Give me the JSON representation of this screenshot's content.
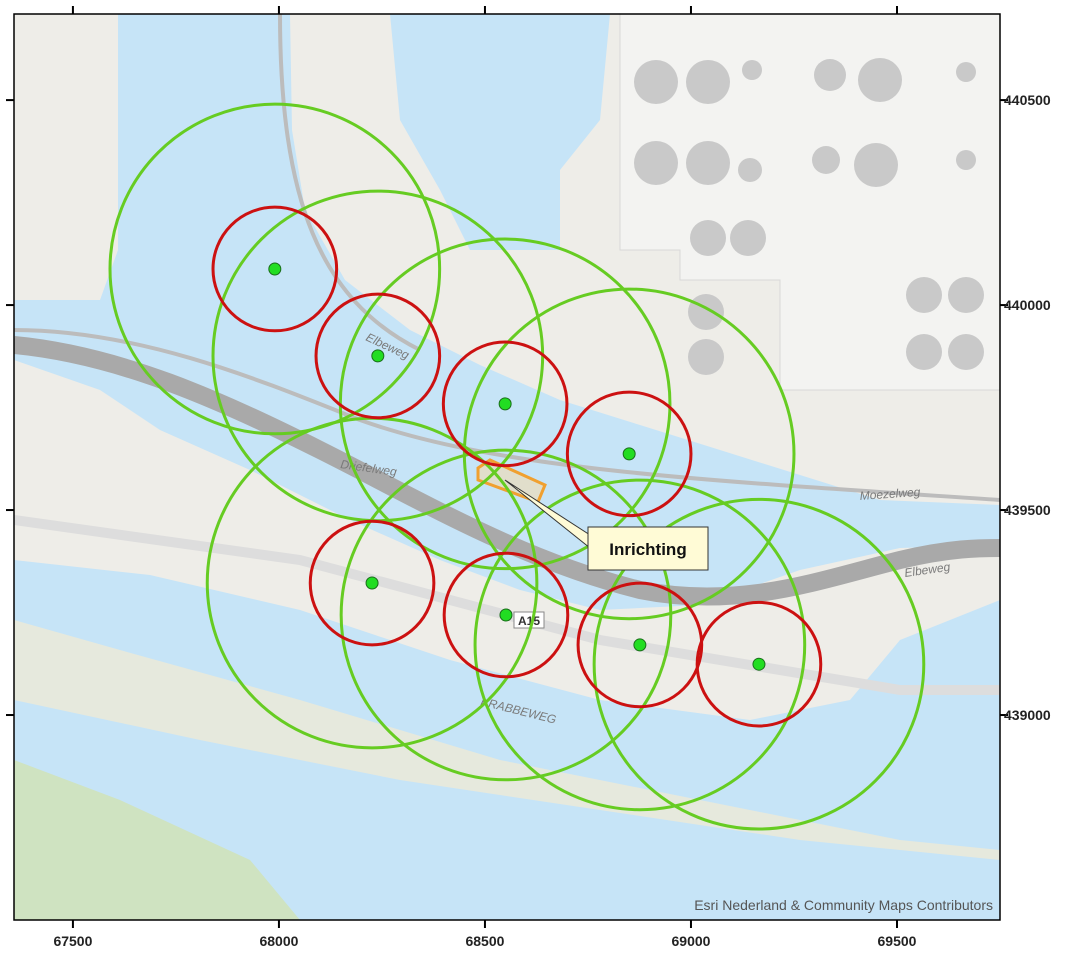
{
  "map": {
    "xlim": [
      67357,
      69750
    ],
    "ylim": [
      438500,
      440710
    ],
    "xticks": [
      67500,
      68000,
      68500,
      69000,
      69500
    ],
    "yticks": [
      439000,
      439500,
      440000,
      440500
    ],
    "points": [
      {
        "x": 67990,
        "y": 440088
      },
      {
        "x": 68240,
        "y": 439876
      },
      {
        "x": 68549,
        "y": 439759
      },
      {
        "x": 68850,
        "y": 439637
      },
      {
        "x": 68226,
        "y": 439322
      },
      {
        "x": 68551,
        "y": 439244
      },
      {
        "x": 68876,
        "y": 439171
      },
      {
        "x": 69165,
        "y": 439124
      }
    ],
    "point_color": "#22dd22",
    "buffers": [
      {
        "radius": 400,
        "color": "#66cc22"
      },
      {
        "radius": 150,
        "color": "#cc1111"
      }
    ],
    "facility_label": "Inrichting",
    "street_labels": [
      "Elbeweg",
      "Driefelweg",
      "Moezelweg",
      "Elbeweg",
      "A15",
      "KRABBEWEG"
    ],
    "attribution": "Esri Nederland & Community Maps Contributors"
  }
}
